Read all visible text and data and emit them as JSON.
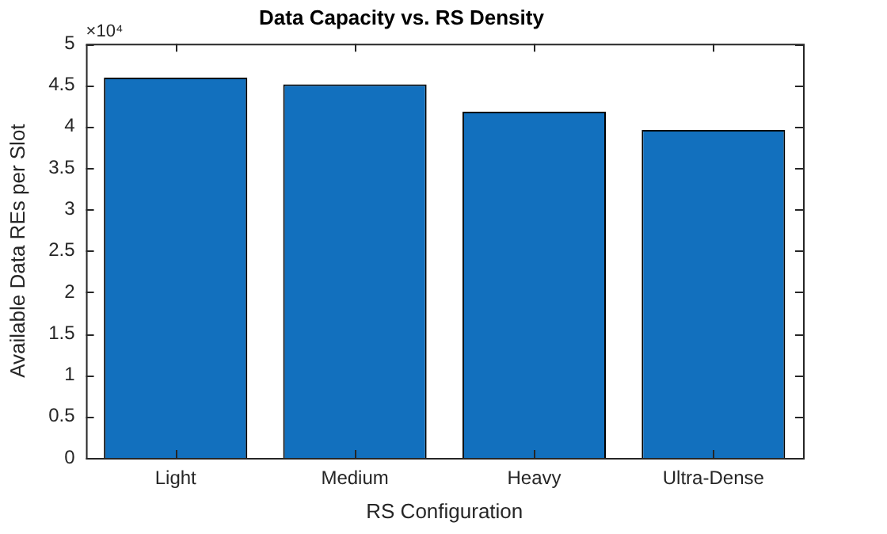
{
  "chart_data": {
    "type": "bar",
    "title": "Data Capacity vs. RS Density",
    "xlabel": "RS Configuration",
    "ylabel": "Available Data REs per Slot",
    "categories": [
      "Light",
      "Medium",
      "Heavy",
      "Ultra-Dense"
    ],
    "values": [
      4.59,
      4.51,
      4.18,
      3.96
    ],
    "color": "#1270be",
    "ylim": [
      0,
      5
    ],
    "yticks": [
      0,
      0.5,
      1,
      1.5,
      2,
      2.5,
      3,
      3.5,
      4,
      4.5,
      5
    ],
    "annotations": [
      "×10⁴"
    ]
  }
}
